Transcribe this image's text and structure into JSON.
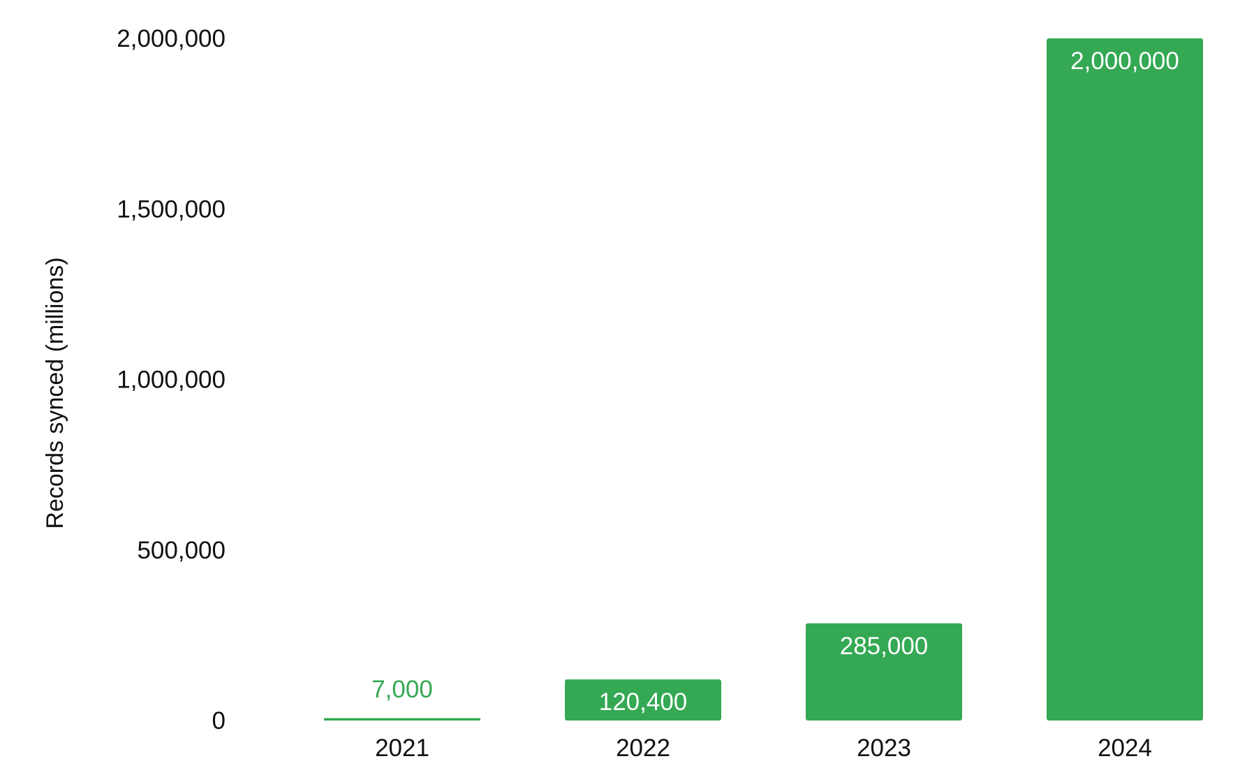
{
  "chart_data": {
    "type": "bar",
    "title": "",
    "xlabel": "",
    "ylabel": "Records synced (millions)",
    "categories": [
      "2021",
      "2022",
      "2023",
      "2024"
    ],
    "values": [
      7000,
      120400,
      285000,
      2000000
    ],
    "data_labels": [
      "7,000",
      "120,400",
      "285,000",
      "2,000,000"
    ],
    "ylim": [
      0,
      2000000
    ],
    "yticks": [
      0,
      500000,
      1000000,
      1500000,
      2000000
    ],
    "ytick_labels": [
      "0",
      "500,000",
      "1,000,000",
      "1,500,000",
      "2,000,000"
    ],
    "grid": false,
    "legend": "none",
    "bar_color": "#34a853",
    "label_inside_color": "#ffffff"
  }
}
